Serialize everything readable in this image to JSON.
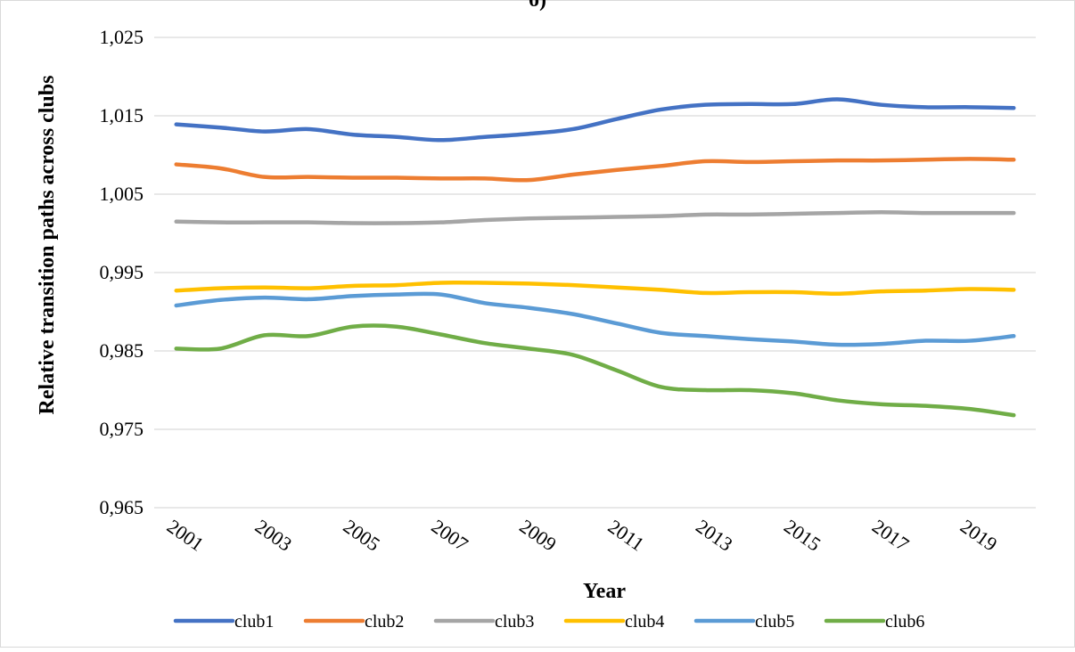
{
  "chart_data": {
    "type": "line",
    "title": "б)",
    "xlabel": "Year",
    "ylabel": "Relative transition paths across clubs",
    "x": [
      2001,
      2002,
      2003,
      2004,
      2005,
      2006,
      2007,
      2008,
      2009,
      2010,
      2011,
      2012,
      2013,
      2014,
      2015,
      2016,
      2017,
      2018,
      2019,
      2020
    ],
    "x_tick_labels": [
      "2001",
      "2003",
      "2005",
      "2007",
      "2009",
      "2011",
      "2013",
      "2015",
      "2017",
      "2019"
    ],
    "x_tick_values": [
      2001,
      2003,
      2005,
      2007,
      2009,
      2011,
      2013,
      2015,
      2017,
      2019
    ],
    "ylim": [
      0.965,
      1.025
    ],
    "y_ticks": [
      0.965,
      0.975,
      0.985,
      0.995,
      1.005,
      1.015,
      1.025
    ],
    "y_tick_labels": [
      "0,965",
      "0,975",
      "0,985",
      "0,995",
      "1,005",
      "1,015",
      "1,025"
    ],
    "grid": "horizontal",
    "legend_position": "bottom",
    "series": [
      {
        "name": "club1",
        "color": "#4472C4",
        "values": [
          1.0139,
          1.0135,
          1.013,
          1.0133,
          1.0126,
          1.0123,
          1.0119,
          1.0123,
          1.0127,
          1.0133,
          1.0146,
          1.0158,
          1.0164,
          1.0165,
          1.0165,
          1.0171,
          1.0164,
          1.0161,
          1.0161,
          1.016
        ]
      },
      {
        "name": "club2",
        "color": "#ED7D31",
        "values": [
          1.0088,
          1.0083,
          1.0072,
          1.0072,
          1.0071,
          1.0071,
          1.007,
          1.007,
          1.0068,
          1.0075,
          1.0081,
          1.0086,
          1.0092,
          1.0091,
          1.0092,
          1.0093,
          1.0093,
          1.0094,
          1.0095,
          1.0094
        ]
      },
      {
        "name": "club3",
        "color": "#A5A5A5",
        "values": [
          1.0015,
          1.0014,
          1.0014,
          1.0014,
          1.0013,
          1.0013,
          1.0014,
          1.0017,
          1.0019,
          1.002,
          1.0021,
          1.0022,
          1.0024,
          1.0024,
          1.0025,
          1.0026,
          1.0027,
          1.0026,
          1.0026,
          1.0026
        ]
      },
      {
        "name": "club4",
        "color": "#FFC000",
        "values": [
          0.9927,
          0.993,
          0.9931,
          0.993,
          0.9933,
          0.9934,
          0.9937,
          0.9937,
          0.9936,
          0.9934,
          0.9931,
          0.9928,
          0.9924,
          0.9925,
          0.9925,
          0.9923,
          0.9926,
          0.9927,
          0.9929,
          0.9928
        ]
      },
      {
        "name": "club5",
        "color": "#5B9BD5",
        "values": [
          0.9908,
          0.9915,
          0.9918,
          0.9916,
          0.992,
          0.9922,
          0.9922,
          0.9911,
          0.9905,
          0.9897,
          0.9885,
          0.9873,
          0.9869,
          0.9865,
          0.9862,
          0.9858,
          0.9859,
          0.9863,
          0.9863,
          0.9869
        ]
      },
      {
        "name": "club6",
        "color": "#70AD47",
        "values": [
          0.9853,
          0.9853,
          0.987,
          0.9869,
          0.9881,
          0.9881,
          0.9871,
          0.986,
          0.9853,
          0.9845,
          0.9825,
          0.9804,
          0.98,
          0.98,
          0.9796,
          0.9787,
          0.9782,
          0.978,
          0.9776,
          0.9768
        ]
      }
    ]
  }
}
